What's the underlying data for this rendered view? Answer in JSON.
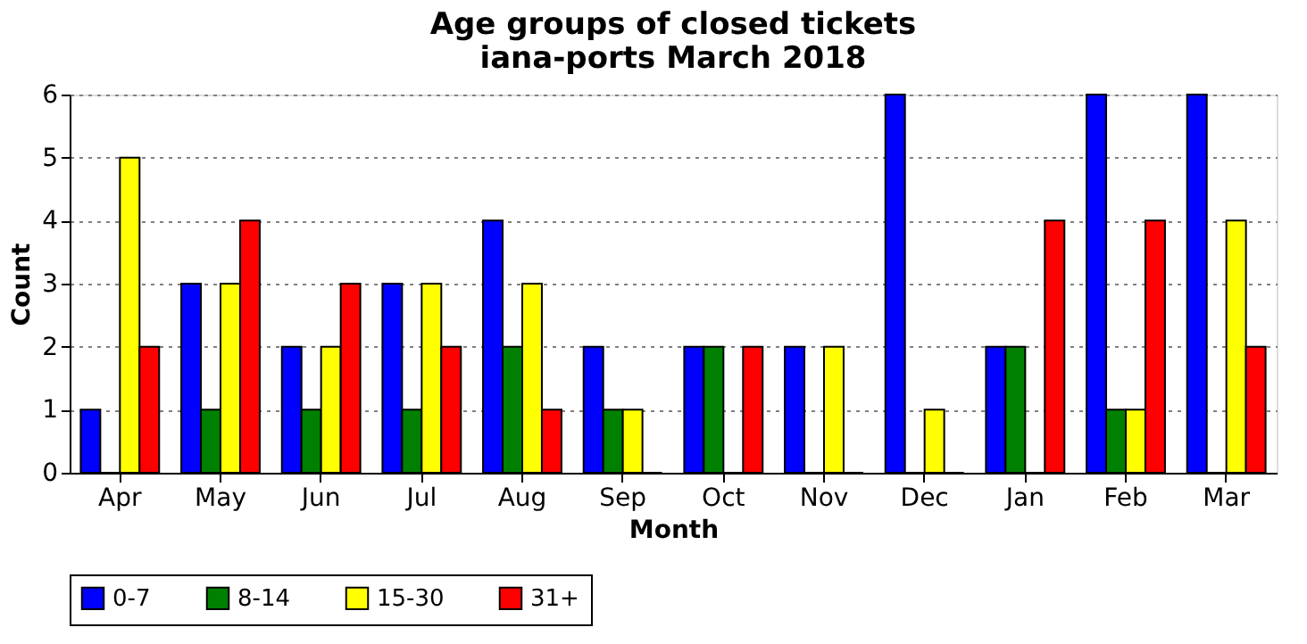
{
  "chart_data": {
    "type": "bar",
    "title": "Age groups of closed tickets\niana-ports March 2018",
    "xlabel": "Month",
    "ylabel": "Count",
    "categories": [
      "Apr",
      "May",
      "Jun",
      "Jul",
      "Aug",
      "Sep",
      "Oct",
      "Nov",
      "Dec",
      "Jan",
      "Feb",
      "Mar"
    ],
    "series": [
      {
        "name": "0-7",
        "color": "#0000ff",
        "values": [
          1,
          3,
          2,
          3,
          4,
          2,
          2,
          2,
          6,
          2,
          6,
          6
        ]
      },
      {
        "name": "8-14",
        "color": "#008000",
        "values": [
          0,
          1,
          1,
          1,
          2,
          1,
          2,
          0,
          0,
          2,
          1,
          0
        ]
      },
      {
        "name": "15-30",
        "color": "#ffff00",
        "values": [
          5,
          3,
          2,
          3,
          3,
          1,
          0,
          2,
          1,
          0,
          1,
          4
        ]
      },
      {
        "name": "31+",
        "color": "#ff0000",
        "values": [
          2,
          4,
          3,
          2,
          1,
          0,
          2,
          0,
          0,
          4,
          4,
          2
        ]
      }
    ],
    "ylim": [
      0,
      6
    ],
    "yticks": [
      0,
      1,
      2,
      3,
      4,
      5,
      6
    ],
    "grid": "y",
    "legend": "bottom"
  }
}
